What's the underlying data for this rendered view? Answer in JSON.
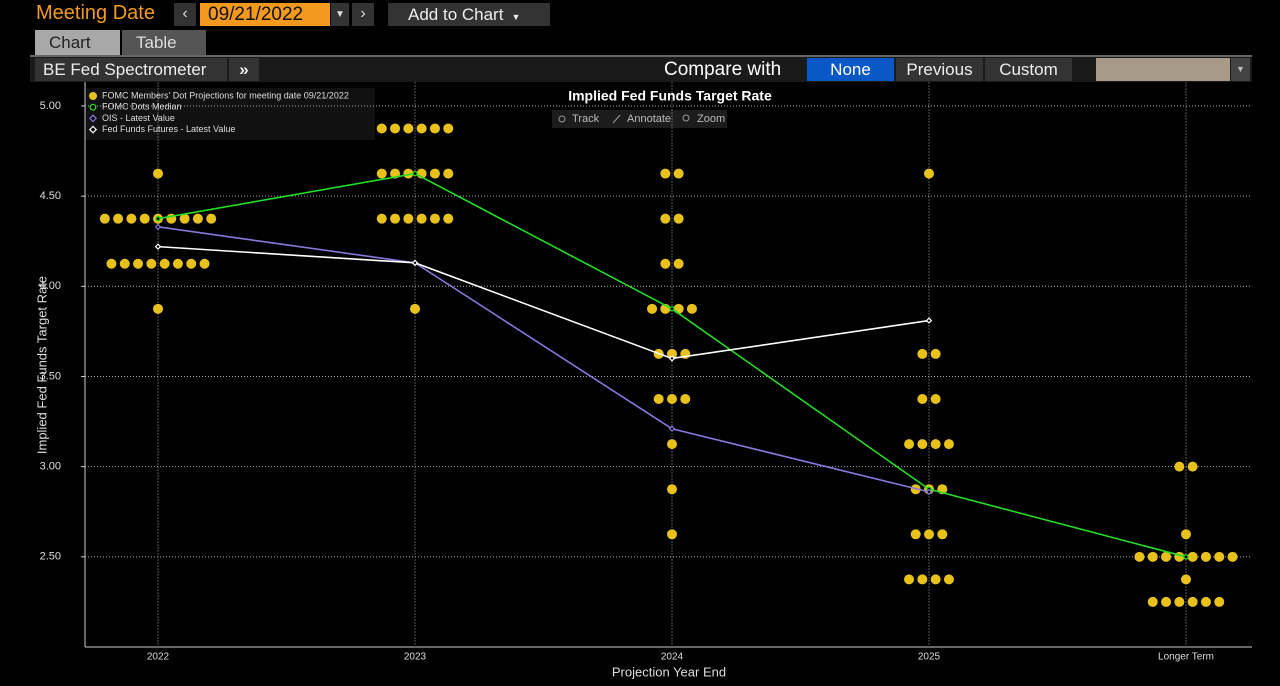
{
  "header": {
    "meeting_date_label": "Meeting Date",
    "meeting_date": "09/21/2022",
    "add_to_chart": "Add to Chart"
  },
  "tabs": [
    "Chart",
    "Table"
  ],
  "toolbar": {
    "view": "BE Fed Spectrometer",
    "compare_label": "Compare with",
    "compare_options": [
      "None",
      "Previous",
      "Custom"
    ]
  },
  "chart_tools": [
    "Track",
    "Annotate",
    "Zoom"
  ],
  "chart_data": {
    "type": "dot_plot",
    "title": "Implied Fed Funds Target Rate",
    "x_label": "Projection Year End",
    "y_label": "Implied Fed Funds Target Rate",
    "categories": [
      "2022",
      "2023",
      "2024",
      "2025",
      "Longer Term"
    ],
    "ylim": [
      2.0,
      5.13
    ],
    "yticks": [
      {
        "value": 2.5,
        "label": "2.50"
      },
      {
        "value": 3.0,
        "label": "3.00"
      },
      {
        "value": 3.5,
        "label": "3.50"
      },
      {
        "value": 4.0,
        "label": "4.00"
      },
      {
        "value": 4.5,
        "label": "4.50"
      },
      {
        "value": 5.0,
        "label": "5.00"
      }
    ],
    "grid": true,
    "series": [
      {
        "name": "FOMC Members' Dot Projections for meeting date 09/21/2022",
        "color": "#e8c21a",
        "marker": "dot",
        "values": [
          [
            4.625,
            4.375,
            4.375,
            4.375,
            4.375,
            4.375,
            4.375,
            4.375,
            4.375,
            4.375,
            4.125,
            4.125,
            4.125,
            4.125,
            4.125,
            4.125,
            4.125,
            4.125,
            3.875
          ],
          [
            4.875,
            4.875,
            4.875,
            4.875,
            4.875,
            4.875,
            4.625,
            4.625,
            4.625,
            4.625,
            4.625,
            4.625,
            4.375,
            4.375,
            4.375,
            4.375,
            4.375,
            4.375,
            3.875
          ],
          [
            4.625,
            4.625,
            4.375,
            4.375,
            4.125,
            4.125,
            3.875,
            3.875,
            3.875,
            3.875,
            3.625,
            3.625,
            3.625,
            3.375,
            3.375,
            3.375,
            3.125,
            2.875,
            2.625
          ],
          [
            4.625,
            3.625,
            3.625,
            3.375,
            3.375,
            3.125,
            3.125,
            3.125,
            3.125,
            2.875,
            2.875,
            2.875,
            2.625,
            2.625,
            2.625,
            2.375,
            2.375,
            2.375,
            2.375
          ],
          [
            3.0,
            3.0,
            2.625,
            2.5,
            2.5,
            2.5,
            2.5,
            2.5,
            2.5,
            2.5,
            2.5,
            2.375,
            2.25,
            2.25,
            2.25,
            2.25,
            2.25,
            2.25
          ]
        ]
      },
      {
        "name": "FOMC Dots Median",
        "color": "#22dd22",
        "marker": "circle",
        "values": [
          4.375,
          4.625,
          3.875,
          2.875,
          2.5
        ]
      },
      {
        "name": "OIS - Latest Value",
        "color": "#8877dd",
        "marker": "diamond",
        "values": [
          4.33,
          4.13,
          3.21,
          2.86,
          null
        ]
      },
      {
        "name": "Fed Funds Futures - Latest Value",
        "color": "#ffffff",
        "marker": "diamond",
        "values": [
          4.22,
          4.13,
          3.6,
          3.81,
          null
        ]
      }
    ]
  }
}
